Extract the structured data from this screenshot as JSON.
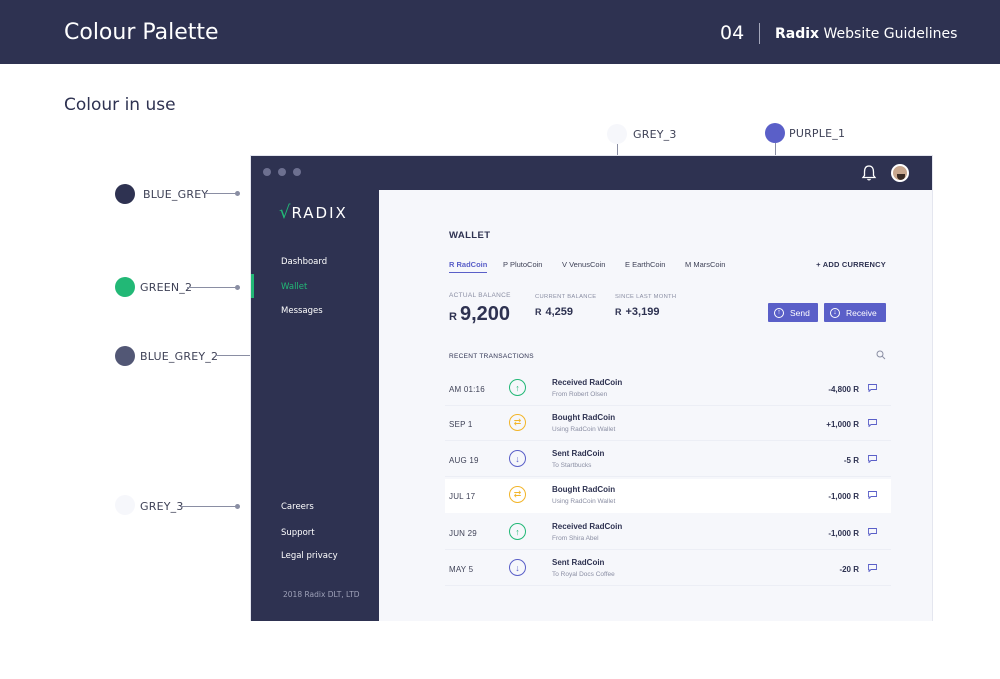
{
  "header": {
    "title": "Colour Palette",
    "page_number": "04",
    "brand": "Radix",
    "guide_suffix": "Website Guidelines"
  },
  "subtitle": "Colour in use",
  "palette": [
    {
      "name": "BLUE_GREY",
      "color": "#2e3251"
    },
    {
      "name": "GREEN_2",
      "color": "#22b876"
    },
    {
      "name": "BLUE_GREY_2",
      "color": "#525775"
    },
    {
      "name": "GREY_3",
      "color": "#f6f7fb"
    },
    {
      "name": "GREY_3",
      "color": "#f6f7fb"
    },
    {
      "name": "PURPLE_1",
      "color": "#5a5fc8"
    }
  ],
  "app": {
    "logo": "RADIX",
    "nav": [
      "Dashboard",
      "Wallet",
      "Messages"
    ],
    "nav_active": "Wallet",
    "footer_nav": [
      "Careers",
      "Support",
      "Legal privacy"
    ],
    "copyright": "2018 Radix DLT, LTD",
    "wallet": {
      "title": "WALLET",
      "tabs": [
        "R RadCoin",
        "P PlutoCoin",
        "V VenusCoin",
        "E EarthCoin",
        "M MarsCoin"
      ],
      "active_tab": "R RadCoin",
      "add_currency": "+ ADD CURRENCY",
      "actual_balance_label": "ACTUAL BALANCE",
      "actual_balance_cur": "R",
      "actual_balance": "9,200",
      "current_balance_label": "CURRENT BALANCE",
      "current_balance_cur": "R",
      "current_balance": "4,259",
      "since_label": "SINCE LAST MONTH",
      "since_cur": "R",
      "since_value": "+3,199",
      "send": "Send",
      "receive": "Receive"
    },
    "recent_label": "RECENT TRANSACTIONS",
    "transactions": [
      {
        "date": "AM 01:16",
        "kind": "up",
        "title": "Received  RadCoin",
        "sub": "From Robert Olsen",
        "amount": "-4,800 R"
      },
      {
        "date": "SEP 1",
        "kind": "swap",
        "title": "Bought  RadCoin",
        "sub": "Using RadCoin Wallet",
        "amount": "+1,000 R"
      },
      {
        "date": "AUG 19",
        "kind": "down",
        "title": "Sent  RadCoin",
        "sub": "To Startbucks",
        "amount": "-5 R"
      },
      {
        "date": "JUL 17",
        "kind": "swap",
        "title": "Bought  RadCoin",
        "sub": "Using RadCoin Wallet",
        "amount": "-1,000 R"
      },
      {
        "date": "JUN 29",
        "kind": "up",
        "title": "Received  RadCoin",
        "sub": "From Shira Abel",
        "amount": "-1,000 R"
      },
      {
        "date": "MAY 5",
        "kind": "down",
        "title": "Sent  RadCoin",
        "sub": "To Royal Docs Coffee",
        "amount": "-20 R"
      }
    ]
  }
}
